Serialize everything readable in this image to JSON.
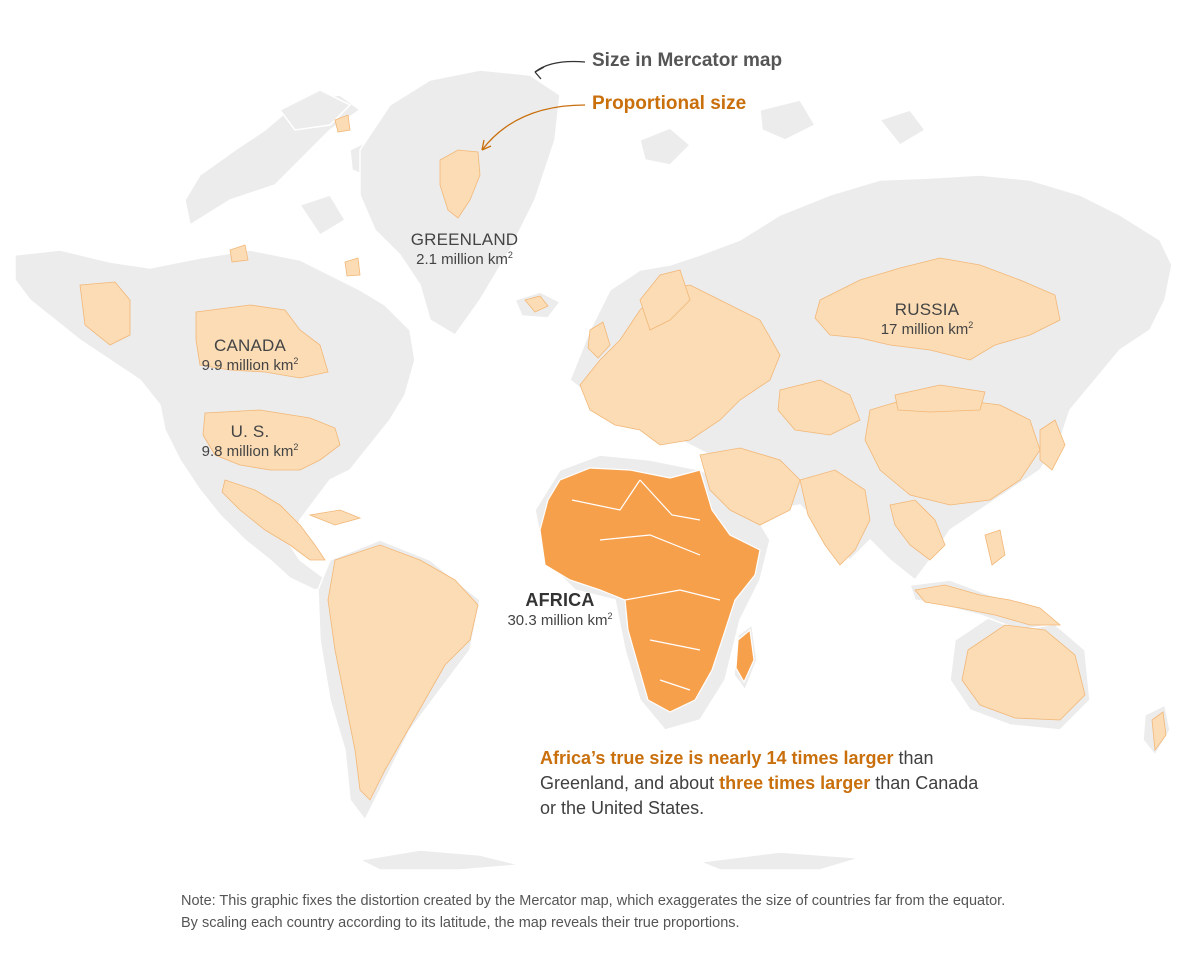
{
  "legend": {
    "mercator": "Size in Mercator map",
    "proportional": "Proportional size"
  },
  "labels": {
    "greenland": {
      "name": "GREENLAND",
      "area": "2.1 million km",
      "sup": "2"
    },
    "canada": {
      "name": "CANADA",
      "area": "9.9 million km",
      "sup": "2"
    },
    "us": {
      "name": "U. S.",
      "area": "9.8 million km",
      "sup": "2"
    },
    "russia": {
      "name": "RUSSIA",
      "area": "17 million km",
      "sup": "2"
    },
    "africa": {
      "name": "AFRICA",
      "area": "30.3 million km",
      "sup": "2"
    }
  },
  "callout": {
    "part1": "Africa’s true size is nearly 14 times larger",
    "part2": " than Greenland, and about ",
    "part3": "three times larger",
    "part4": " than Canada or the United States."
  },
  "note": "Note: This graphic fixes the distortion created by the Mercator map, which exaggerates the size of countries far from the equator. By scaling each country according to its latitude, the map reveals their true proportions.",
  "colors": {
    "mercator_land": "#ececec",
    "proportional_land": "#fbdcb5",
    "africa": "#f7a04c",
    "accent": "#c96f0c"
  }
}
